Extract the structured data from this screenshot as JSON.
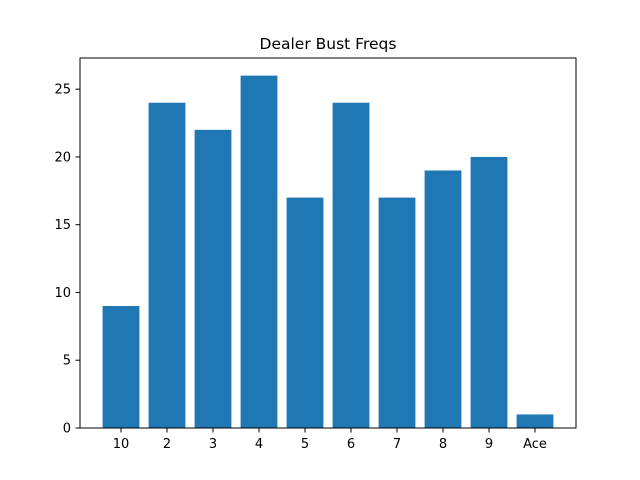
{
  "chart_data": {
    "type": "bar",
    "title": "Dealer Bust Freqs",
    "xlabel": "",
    "ylabel": "",
    "categories": [
      "10",
      "2",
      "3",
      "4",
      "5",
      "6",
      "7",
      "8",
      "9",
      "Ace"
    ],
    "values": [
      9,
      24,
      22,
      26,
      17,
      24,
      17,
      19,
      20,
      1
    ],
    "ylim": [
      0,
      27.3
    ],
    "yticks": [
      0,
      5,
      10,
      15,
      20,
      25
    ],
    "grid": false,
    "bar_color": "#1f77b4"
  }
}
